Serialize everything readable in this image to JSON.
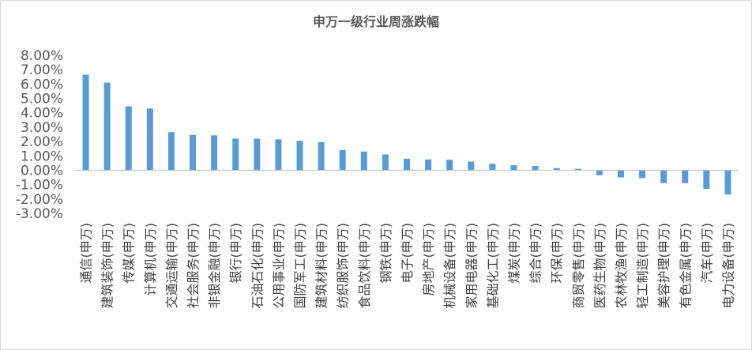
{
  "chart_data": {
    "type": "bar",
    "title": "申万一级行业周涨跌幅",
    "xlabel": "",
    "ylabel": "",
    "ylim": [
      -0.03,
      0.08
    ],
    "ytick_step": 0.01,
    "ytick_labels": [
      "8.00%",
      "7.00%",
      "6.00%",
      "5.00%",
      "4.00%",
      "3.00%",
      "2.00%",
      "1.00%",
      "0.00%",
      "-1.00%",
      "-2.00%",
      "-3.00%"
    ],
    "grid": false,
    "legend": "none",
    "bar_color": "#5b9bd5",
    "categories": [
      "通信(申万)",
      "建筑装饰(申万)",
      "传媒(申万)",
      "计算机(申万)",
      "交通运输(申万)",
      "社会服务(申万)",
      "非银金融(申万)",
      "银行(申万)",
      "石油石化(申万)",
      "公用事业(申万)",
      "国防军工(申万)",
      "建筑材料(申万)",
      "纺织服饰(申万)",
      "食品饮料(申万)",
      "钢铁(申万)",
      "电子(申万)",
      "房地产(申万)",
      "机械设备(申万)",
      "家用电器(申万)",
      "基础化工(申万)",
      "煤炭(申万)",
      "综合(申万)",
      "环保(申万)",
      "商贸零售(申万)",
      "医药生物(申万)",
      "农林牧渔(申万)",
      "轻工制造(申万)",
      "美容护理(申万)",
      "有色金属(申万)",
      "汽车(申万)",
      "电力设备(申万)"
    ],
    "values": [
      0.0665,
      0.061,
      0.0445,
      0.043,
      0.0265,
      0.0245,
      0.0243,
      0.022,
      0.022,
      0.0215,
      0.0205,
      0.0195,
      0.014,
      0.013,
      0.011,
      0.008,
      0.0075,
      0.0073,
      0.006,
      0.0045,
      0.0035,
      0.003,
      0.0015,
      0.001,
      -0.0035,
      -0.005,
      -0.0055,
      -0.009,
      -0.009,
      -0.013,
      -0.017
    ]
  }
}
